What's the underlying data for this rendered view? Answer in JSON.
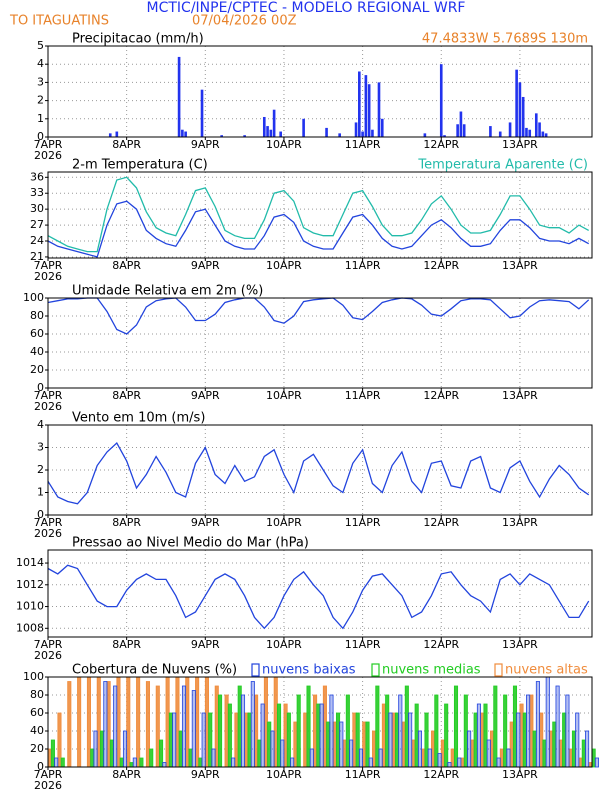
{
  "header": {
    "title": "MCTIC/INPE/CPTEC - MODELO REGIONAL WRF",
    "location": "TO ITAGUATINS",
    "date": "07/04/2026 00Z"
  },
  "chart_data": [
    {
      "type": "bar",
      "title": "Precipitacao (mm/h)",
      "annotation": "47.4833W 5.7689S 130m",
      "color": "#2233ee",
      "x": [
        19,
        21,
        40,
        41,
        42,
        47,
        53,
        60,
        66,
        67,
        68,
        69,
        71,
        78,
        85,
        89,
        94,
        95,
        96,
        97,
        98,
        99,
        101,
        102,
        115,
        120,
        121,
        125,
        126,
        127,
        135,
        138,
        141,
        143,
        144,
        145,
        146,
        147,
        149,
        150,
        151,
        152
      ],
      "values": [
        0.2,
        0.3,
        4.4,
        0.4,
        0.3,
        2.6,
        0.1,
        0.1,
        1.1,
        0.6,
        0.4,
        1.5,
        0.3,
        1.0,
        0.5,
        0.2,
        0.8,
        3.6,
        0.3,
        3.4,
        2.9,
        0.4,
        3.0,
        1.0,
        0.2,
        4.0,
        0.1,
        0.7,
        1.4,
        0.7,
        0.6,
        0.3,
        0.8,
        3.7,
        3.0,
        2.2,
        0.5,
        0.4,
        1.3,
        0.8,
        0.3,
        0.2
      ],
      "xlim": [
        0,
        166
      ],
      "xticks": [
        {
          "value": 0,
          "label": "7APR"
        },
        {
          "value": 24,
          "label": "8APR"
        },
        {
          "value": 48,
          "label": "9APR"
        },
        {
          "value": 72,
          "label": "10APR"
        },
        {
          "value": 96,
          "label": "11APR"
        },
        {
          "value": 120,
          "label": "12APR"
        },
        {
          "value": 144,
          "label": "13APR"
        }
      ],
      "x_sublabel": "2026",
      "ylim": [
        0,
        5
      ],
      "yticks": [
        0,
        1,
        2,
        3,
        4,
        5
      ],
      "grid": true
    },
    {
      "type": "line",
      "title": "2-m Temperatura (C)",
      "x": [
        0,
        3,
        6,
        9,
        12,
        15,
        18,
        21,
        24,
        27,
        30,
        33,
        36,
        39,
        42,
        45,
        48,
        51,
        54,
        57,
        60,
        63,
        66,
        69,
        72,
        75,
        78,
        81,
        84,
        87,
        90,
        93,
        96,
        99,
        102,
        105,
        108,
        111,
        114,
        117,
        120,
        123,
        126,
        129,
        132,
        135,
        138,
        141,
        144,
        147,
        150,
        153,
        156,
        159,
        162,
        165
      ],
      "series": [
        {
          "color": "#2244dd",
          "values": [
            24,
            23,
            22.5,
            22,
            21.5,
            21,
            27,
            31,
            31.5,
            30,
            26,
            24.5,
            23.5,
            23,
            26,
            29.5,
            30,
            27,
            24,
            23,
            22.5,
            22.5,
            25,
            28.5,
            29,
            27.5,
            24,
            23,
            22.5,
            22.5,
            25.5,
            28.5,
            29,
            27,
            24.5,
            23,
            22.5,
            23,
            25,
            27,
            28,
            26.5,
            24.5,
            23,
            23,
            23.5,
            26,
            28,
            28,
            26.5,
            24.5,
            24,
            24,
            23.5,
            24.5,
            23.5
          ]
        },
        {
          "name": "Temperatura Aparente (C)",
          "color": "#22bbaa",
          "values": [
            25,
            24,
            23,
            22.5,
            22,
            22,
            30,
            35.5,
            36,
            34,
            29.5,
            26.5,
            25.5,
            25,
            29,
            33.5,
            34,
            30.5,
            26,
            25,
            24.5,
            24.5,
            28,
            33,
            33.5,
            31.5,
            26.5,
            25.5,
            25,
            25,
            29,
            33,
            33.5,
            30.5,
            27,
            25,
            25,
            25.5,
            28,
            31,
            32.5,
            30,
            27,
            25.5,
            25.5,
            26,
            29,
            32.5,
            32.5,
            30,
            27,
            26.5,
            26.5,
            25.5,
            27,
            26
          ]
        }
      ],
      "xlim": [
        0,
        166
      ],
      "xticks": [
        {
          "value": 0,
          "label": "7APR"
        },
        {
          "value": 24,
          "label": "8APR"
        },
        {
          "value": 48,
          "label": "9APR"
        },
        {
          "value": 72,
          "label": "10APR"
        },
        {
          "value": 96,
          "label": "11APR"
        },
        {
          "value": 120,
          "label": "12APR"
        },
        {
          "value": 144,
          "label": "13APR"
        }
      ],
      "x_sublabel": "2026",
      "ylim": [
        20.8,
        37
      ],
      "yticks": [
        21,
        24,
        27,
        30,
        33,
        36
      ],
      "grid": true
    },
    {
      "type": "line",
      "title": "Umidade Relativa em 2m (%)",
      "color": "#2244dd",
      "x": [
        0,
        3,
        6,
        9,
        12,
        15,
        18,
        21,
        24,
        27,
        30,
        33,
        36,
        39,
        42,
        45,
        48,
        51,
        54,
        57,
        60,
        63,
        66,
        69,
        72,
        75,
        78,
        81,
        84,
        87,
        90,
        93,
        96,
        99,
        102,
        105,
        108,
        111,
        114,
        117,
        120,
        123,
        126,
        129,
        132,
        135,
        138,
        141,
        144,
        147,
        150,
        153,
        156,
        159,
        162,
        165
      ],
      "values": [
        95,
        97,
        99,
        99,
        100,
        100,
        85,
        65,
        60,
        70,
        90,
        97,
        99,
        100,
        90,
        75,
        75,
        82,
        95,
        98,
        100,
        100,
        90,
        75,
        72,
        80,
        96,
        98,
        99,
        100,
        92,
        78,
        76,
        85,
        95,
        98,
        100,
        99,
        92,
        82,
        80,
        88,
        97,
        99,
        99,
        98,
        88,
        78,
        80,
        90,
        97,
        98,
        97,
        96,
        88,
        98
      ],
      "xlim": [
        0,
        166
      ],
      "xticks": [
        {
          "value": 0,
          "label": "7APR"
        },
        {
          "value": 24,
          "label": "8APR"
        },
        {
          "value": 48,
          "label": "9APR"
        },
        {
          "value": 72,
          "label": "10APR"
        },
        {
          "value": 96,
          "label": "11APR"
        },
        {
          "value": 120,
          "label": "12APR"
        },
        {
          "value": 144,
          "label": "13APR"
        }
      ],
      "x_sublabel": "2026",
      "ylim": [
        0,
        100
      ],
      "yticks": [
        0,
        20,
        40,
        60,
        80,
        100
      ],
      "grid": true
    },
    {
      "type": "line",
      "title": "Vento em 10m (m/s)",
      "color": "#2244dd",
      "x": [
        0,
        3,
        6,
        9,
        12,
        15,
        18,
        21,
        24,
        27,
        30,
        33,
        36,
        39,
        42,
        45,
        48,
        51,
        54,
        57,
        60,
        63,
        66,
        69,
        72,
        75,
        78,
        81,
        84,
        87,
        90,
        93,
        96,
        99,
        102,
        105,
        108,
        111,
        114,
        117,
        120,
        123,
        126,
        129,
        132,
        135,
        138,
        141,
        144,
        147,
        150,
        153,
        156,
        159,
        162,
        165
      ],
      "values": [
        1.5,
        0.8,
        0.6,
        0.5,
        1,
        2.2,
        2.8,
        3.2,
        2.4,
        1.2,
        1.8,
        2.6,
        1.9,
        1,
        0.8,
        2.3,
        3,
        1.8,
        1.4,
        2.2,
        1.5,
        1.7,
        2.6,
        2.9,
        1.8,
        1,
        2.4,
        2.7,
        2,
        1.3,
        1,
        2.3,
        2.9,
        1.4,
        1,
        2.2,
        2.8,
        1.5,
        1,
        2.3,
        2.4,
        1.3,
        1.2,
        2.4,
        2.6,
        1.2,
        1,
        2.1,
        2.4,
        1.5,
        0.8,
        1.6,
        2.2,
        1.8,
        1.2,
        0.9
      ],
      "xlim": [
        0,
        166
      ],
      "xticks": [
        {
          "value": 0,
          "label": "7APR"
        },
        {
          "value": 24,
          "label": "8APR"
        },
        {
          "value": 48,
          "label": "9APR"
        },
        {
          "value": 72,
          "label": "10APR"
        },
        {
          "value": 96,
          "label": "11APR"
        },
        {
          "value": 120,
          "label": "12APR"
        },
        {
          "value": 144,
          "label": "13APR"
        }
      ],
      "x_sublabel": "2026",
      "ylim": [
        0,
        4
      ],
      "yticks": [
        0,
        1,
        2,
        3,
        4
      ],
      "grid": true
    },
    {
      "type": "line",
      "title": "Pressao ao Nivel Medio do Mar (hPa)",
      "color": "#2244dd",
      "x": [
        0,
        3,
        6,
        9,
        12,
        15,
        18,
        21,
        24,
        27,
        30,
        33,
        36,
        39,
        42,
        45,
        48,
        51,
        54,
        57,
        60,
        63,
        66,
        69,
        72,
        75,
        78,
        81,
        84,
        87,
        90,
        93,
        96,
        99,
        102,
        105,
        108,
        111,
        114,
        117,
        120,
        123,
        126,
        129,
        132,
        135,
        138,
        141,
        144,
        147,
        150,
        153,
        156,
        159,
        162,
        165
      ],
      "values": [
        1013.5,
        1013,
        1013.8,
        1013.5,
        1012,
        1010.5,
        1010,
        1010,
        1011.5,
        1012.5,
        1013,
        1012.5,
        1012.5,
        1011,
        1009,
        1009.5,
        1011,
        1012.5,
        1013,
        1012.5,
        1011,
        1009,
        1008,
        1009,
        1011,
        1012.5,
        1013.2,
        1012,
        1011,
        1009,
        1008,
        1009.5,
        1011.5,
        1012.8,
        1013,
        1012,
        1011,
        1009,
        1009.5,
        1011,
        1013,
        1013.2,
        1012,
        1011,
        1010.5,
        1009.5,
        1012.5,
        1013,
        1012,
        1013,
        1012.5,
        1012,
        1010.5,
        1009,
        1009,
        1010.5
      ],
      "xlim": [
        0,
        166
      ],
      "xticks": [
        {
          "value": 0,
          "label": "7APR"
        },
        {
          "value": 24,
          "label": "8APR"
        },
        {
          "value": 48,
          "label": "9APR"
        },
        {
          "value": 72,
          "label": "10APR"
        },
        {
          "value": 96,
          "label": "11APR"
        },
        {
          "value": 120,
          "label": "12APR"
        },
        {
          "value": 144,
          "label": "13APR"
        }
      ],
      "x_sublabel": "2026",
      "ylim": [
        1007.2,
        1015.2
      ],
      "yticks": [
        1008,
        1010,
        1012,
        1014
      ],
      "grid": true
    },
    {
      "type": "bar",
      "title": "Cobertura de Nuvens (%)",
      "x": [
        0,
        3,
        6,
        9,
        12,
        15,
        18,
        21,
        24,
        27,
        30,
        33,
        36,
        39,
        42,
        45,
        48,
        51,
        54,
        57,
        60,
        63,
        66,
        69,
        72,
        75,
        78,
        81,
        84,
        87,
        90,
        93,
        96,
        99,
        102,
        105,
        108,
        111,
        114,
        117,
        120,
        123,
        126,
        129,
        132,
        135,
        138,
        141,
        144,
        147,
        150,
        153,
        156,
        159,
        162,
        165
      ],
      "series": [
        {
          "name": "nuvens baixas",
          "color": "#2244dd",
          "values": [
            10,
            0,
            0,
            0,
            40,
            95,
            90,
            40,
            10,
            0,
            0,
            5,
            60,
            90,
            85,
            60,
            20,
            0,
            10,
            80,
            95,
            70,
            40,
            30,
            10,
            0,
            20,
            70,
            80,
            50,
            30,
            20,
            10,
            20,
            60,
            80,
            60,
            40,
            20,
            15,
            5,
            10,
            40,
            70,
            30,
            10,
            20,
            60,
            80,
            95,
            100,
            90,
            80,
            60,
            40,
            10
          ]
        },
        {
          "name": "nuvens medias",
          "color": "#22cc22",
          "values": [
            30,
            10,
            0,
            0,
            20,
            40,
            30,
            10,
            5,
            10,
            20,
            30,
            60,
            40,
            20,
            10,
            60,
            80,
            70,
            90,
            60,
            30,
            50,
            70,
            60,
            80,
            90,
            70,
            50,
            60,
            80,
            60,
            50,
            90,
            80,
            60,
            90,
            70,
            60,
            80,
            70,
            90,
            80,
            60,
            70,
            90,
            80,
            90,
            60,
            40,
            30,
            50,
            60,
            40,
            30,
            20
          ]
        },
        {
          "name": "nuvens altas",
          "color": "#f08c3c",
          "values": [
            20,
            60,
            95,
            100,
            100,
            100,
            95,
            100,
            100,
            100,
            95,
            90,
            100,
            100,
            100,
            100,
            100,
            90,
            80,
            60,
            60,
            80,
            100,
            100,
            70,
            50,
            60,
            80,
            90,
            50,
            30,
            60,
            50,
            40,
            70,
            60,
            50,
            30,
            20,
            40,
            30,
            20,
            10,
            30,
            60,
            40,
            20,
            50,
            70,
            80,
            60,
            40,
            30,
            20,
            10,
            5
          ]
        }
      ],
      "xlim": [
        0,
        166
      ],
      "xticks": [
        {
          "value": 0,
          "label": "7APR"
        },
        {
          "value": 24,
          "label": "8APR"
        },
        {
          "value": 48,
          "label": "9APR"
        },
        {
          "value": 72,
          "label": "10APR"
        },
        {
          "value": 96,
          "label": "11APR"
        },
        {
          "value": 120,
          "label": "12APR"
        },
        {
          "value": 144,
          "label": "13APR"
        }
      ],
      "x_sublabel": "2026",
      "ylim": [
        0,
        100
      ],
      "yticks": [
        0,
        20,
        40,
        60,
        80,
        100
      ],
      "grid": true
    }
  ]
}
